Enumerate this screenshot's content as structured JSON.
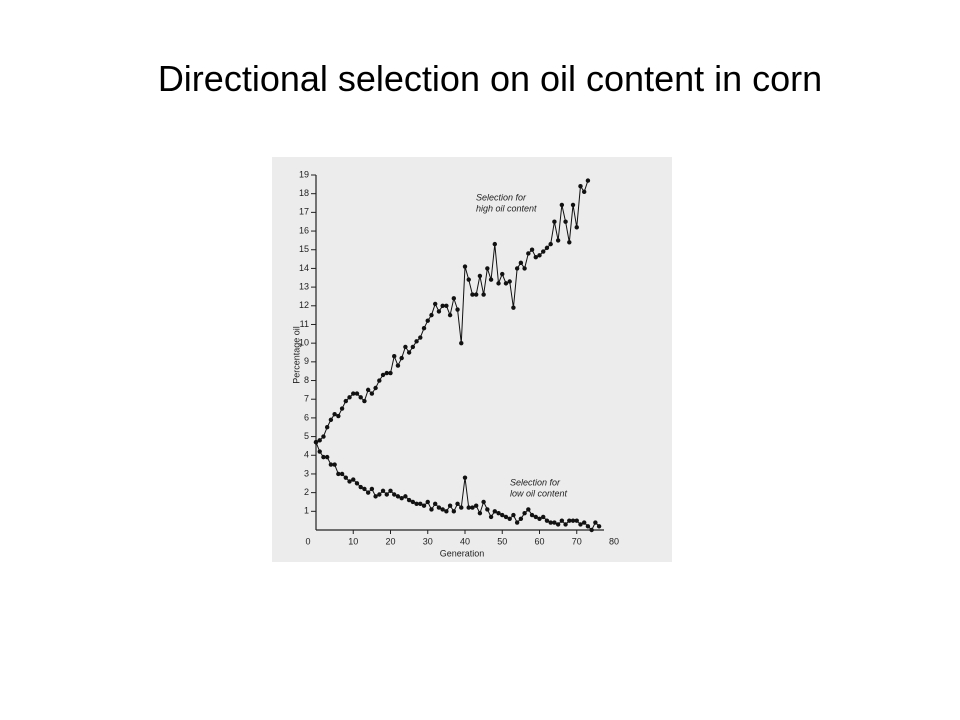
{
  "slide_title": "Directional selection on oil content in corn",
  "chart_data": {
    "type": "line",
    "xlabel": "Generation",
    "ylabel": "Percentage oil",
    "xlim": [
      0,
      80
    ],
    "ylim": [
      0,
      19
    ],
    "xticks": [
      0,
      10,
      20,
      30,
      40,
      50,
      60,
      70,
      80
    ],
    "yticks": [
      1,
      2,
      3,
      4,
      5,
      6,
      7,
      8,
      9,
      10,
      11,
      12,
      13,
      14,
      15,
      16,
      17,
      18,
      19
    ],
    "grid": false,
    "annotations": [
      {
        "lines": [
          "Selection for",
          "high oil content"
        ]
      },
      {
        "lines": [
          "Selection for",
          "low oil content"
        ]
      }
    ],
    "series": [
      {
        "color": "#111111",
        "x": [
          0,
          1,
          2,
          3,
          4,
          5,
          6,
          7,
          8,
          9,
          10,
          11,
          12,
          13,
          14,
          15,
          16,
          17,
          18,
          19,
          20,
          21,
          22,
          23,
          24,
          25,
          26,
          27,
          28,
          29,
          30,
          31,
          32,
          33,
          34,
          35,
          36,
          37,
          38,
          39,
          40,
          41,
          42,
          43,
          44,
          45,
          46,
          47,
          48,
          49,
          50,
          51,
          52,
          53,
          54,
          55,
          56,
          57,
          58,
          59,
          60,
          61,
          62,
          63,
          64,
          65,
          66,
          67,
          68,
          69,
          70,
          71,
          72,
          73
        ],
        "values": [
          4.7,
          4.8,
          5.0,
          5.5,
          5.9,
          6.2,
          6.1,
          6.5,
          6.9,
          7.1,
          7.3,
          7.3,
          7.1,
          6.9,
          7.5,
          7.3,
          7.6,
          8.0,
          8.3,
          8.4,
          8.4,
          9.3,
          8.8,
          9.2,
          9.8,
          9.5,
          9.8,
          10.1,
          10.3,
          10.8,
          11.2,
          11.5,
          12.1,
          11.7,
          12.0,
          12.0,
          11.5,
          12.4,
          11.8,
          10.0,
          14.1,
          13.4,
          12.6,
          12.6,
          13.6,
          12.6,
          14.0,
          13.4,
          15.3,
          13.2,
          13.7,
          13.2,
          13.3,
          11.9,
          14.0,
          14.3,
          14.0,
          14.8,
          15.0,
          14.6,
          14.7,
          14.9,
          15.1,
          15.3,
          16.5,
          15.5,
          17.4,
          16.5,
          15.4,
          17.4,
          16.2,
          18.4,
          18.1,
          18.7
        ]
      },
      {
        "color": "#111111",
        "x": [
          0,
          1,
          2,
          3,
          4,
          5,
          6,
          7,
          8,
          9,
          10,
          11,
          12,
          13,
          14,
          15,
          16,
          17,
          18,
          19,
          20,
          21,
          22,
          23,
          24,
          25,
          26,
          27,
          28,
          29,
          30,
          31,
          32,
          33,
          34,
          35,
          36,
          37,
          38,
          39,
          40,
          41,
          42,
          43,
          44,
          45,
          46,
          47,
          48,
          49,
          50,
          51,
          52,
          53,
          54,
          55,
          56,
          57,
          58,
          59,
          60,
          61,
          62,
          63,
          64,
          65,
          66,
          67,
          68,
          69,
          70,
          71,
          72,
          73,
          74,
          75,
          76
        ],
        "values": [
          4.7,
          4.2,
          3.9,
          3.9,
          3.5,
          3.5,
          3.0,
          3.0,
          2.8,
          2.6,
          2.7,
          2.5,
          2.3,
          2.2,
          2.0,
          2.2,
          1.8,
          1.9,
          2.1,
          1.9,
          2.1,
          1.9,
          1.8,
          1.7,
          1.8,
          1.6,
          1.5,
          1.4,
          1.4,
          1.3,
          1.5,
          1.1,
          1.4,
          1.2,
          1.1,
          1.0,
          1.3,
          1.0,
          1.4,
          1.2,
          2.8,
          1.2,
          1.2,
          1.3,
          0.9,
          1.5,
          1.1,
          0.7,
          1.0,
          0.9,
          0.8,
          0.7,
          0.6,
          0.8,
          0.4,
          0.6,
          0.9,
          1.1,
          0.8,
          0.7,
          0.6,
          0.7,
          0.5,
          0.4,
          0.4,
          0.3,
          0.5,
          0.3,
          0.5,
          0.5,
          0.5,
          0.3,
          0.4,
          0.2,
          0.0,
          0.4,
          0.2
        ]
      }
    ]
  }
}
